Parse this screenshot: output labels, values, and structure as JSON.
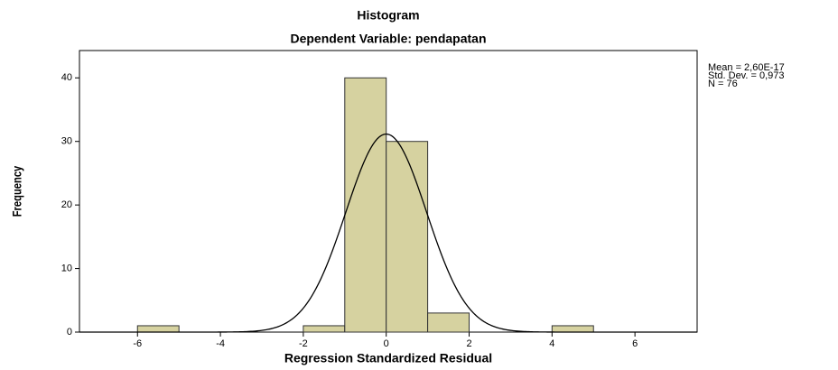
{
  "chart_data": {
    "type": "histogram",
    "title": "Histogram",
    "subtitle": "Dependent Variable: pendapatan",
    "xlabel": "Regression Standardized Residual",
    "ylabel": "Frequency",
    "bins": [
      -6,
      -5,
      -4,
      -3,
      -2,
      -1,
      0,
      1,
      2,
      3,
      4,
      5
    ],
    "counts": [
      1,
      0,
      0,
      0,
      1,
      40,
      30,
      3,
      0,
      0,
      1
    ],
    "color": "#d6d2a0",
    "edge_color": "#333333",
    "xlim": [
      -7.4,
      7.5
    ],
    "ylim": [
      0,
      44.3
    ],
    "xticks": [
      -6,
      -4,
      -2,
      0,
      2,
      4,
      6
    ],
    "yticks": [
      0,
      10,
      20,
      30,
      40
    ],
    "normal_curve": {
      "mean": 2.6e-17,
      "std_dev": 0.973,
      "n": 76,
      "labels": [
        "Mean = 2,60E-17",
        "Std. Dev. = 0,973",
        "N = 76"
      ]
    }
  }
}
